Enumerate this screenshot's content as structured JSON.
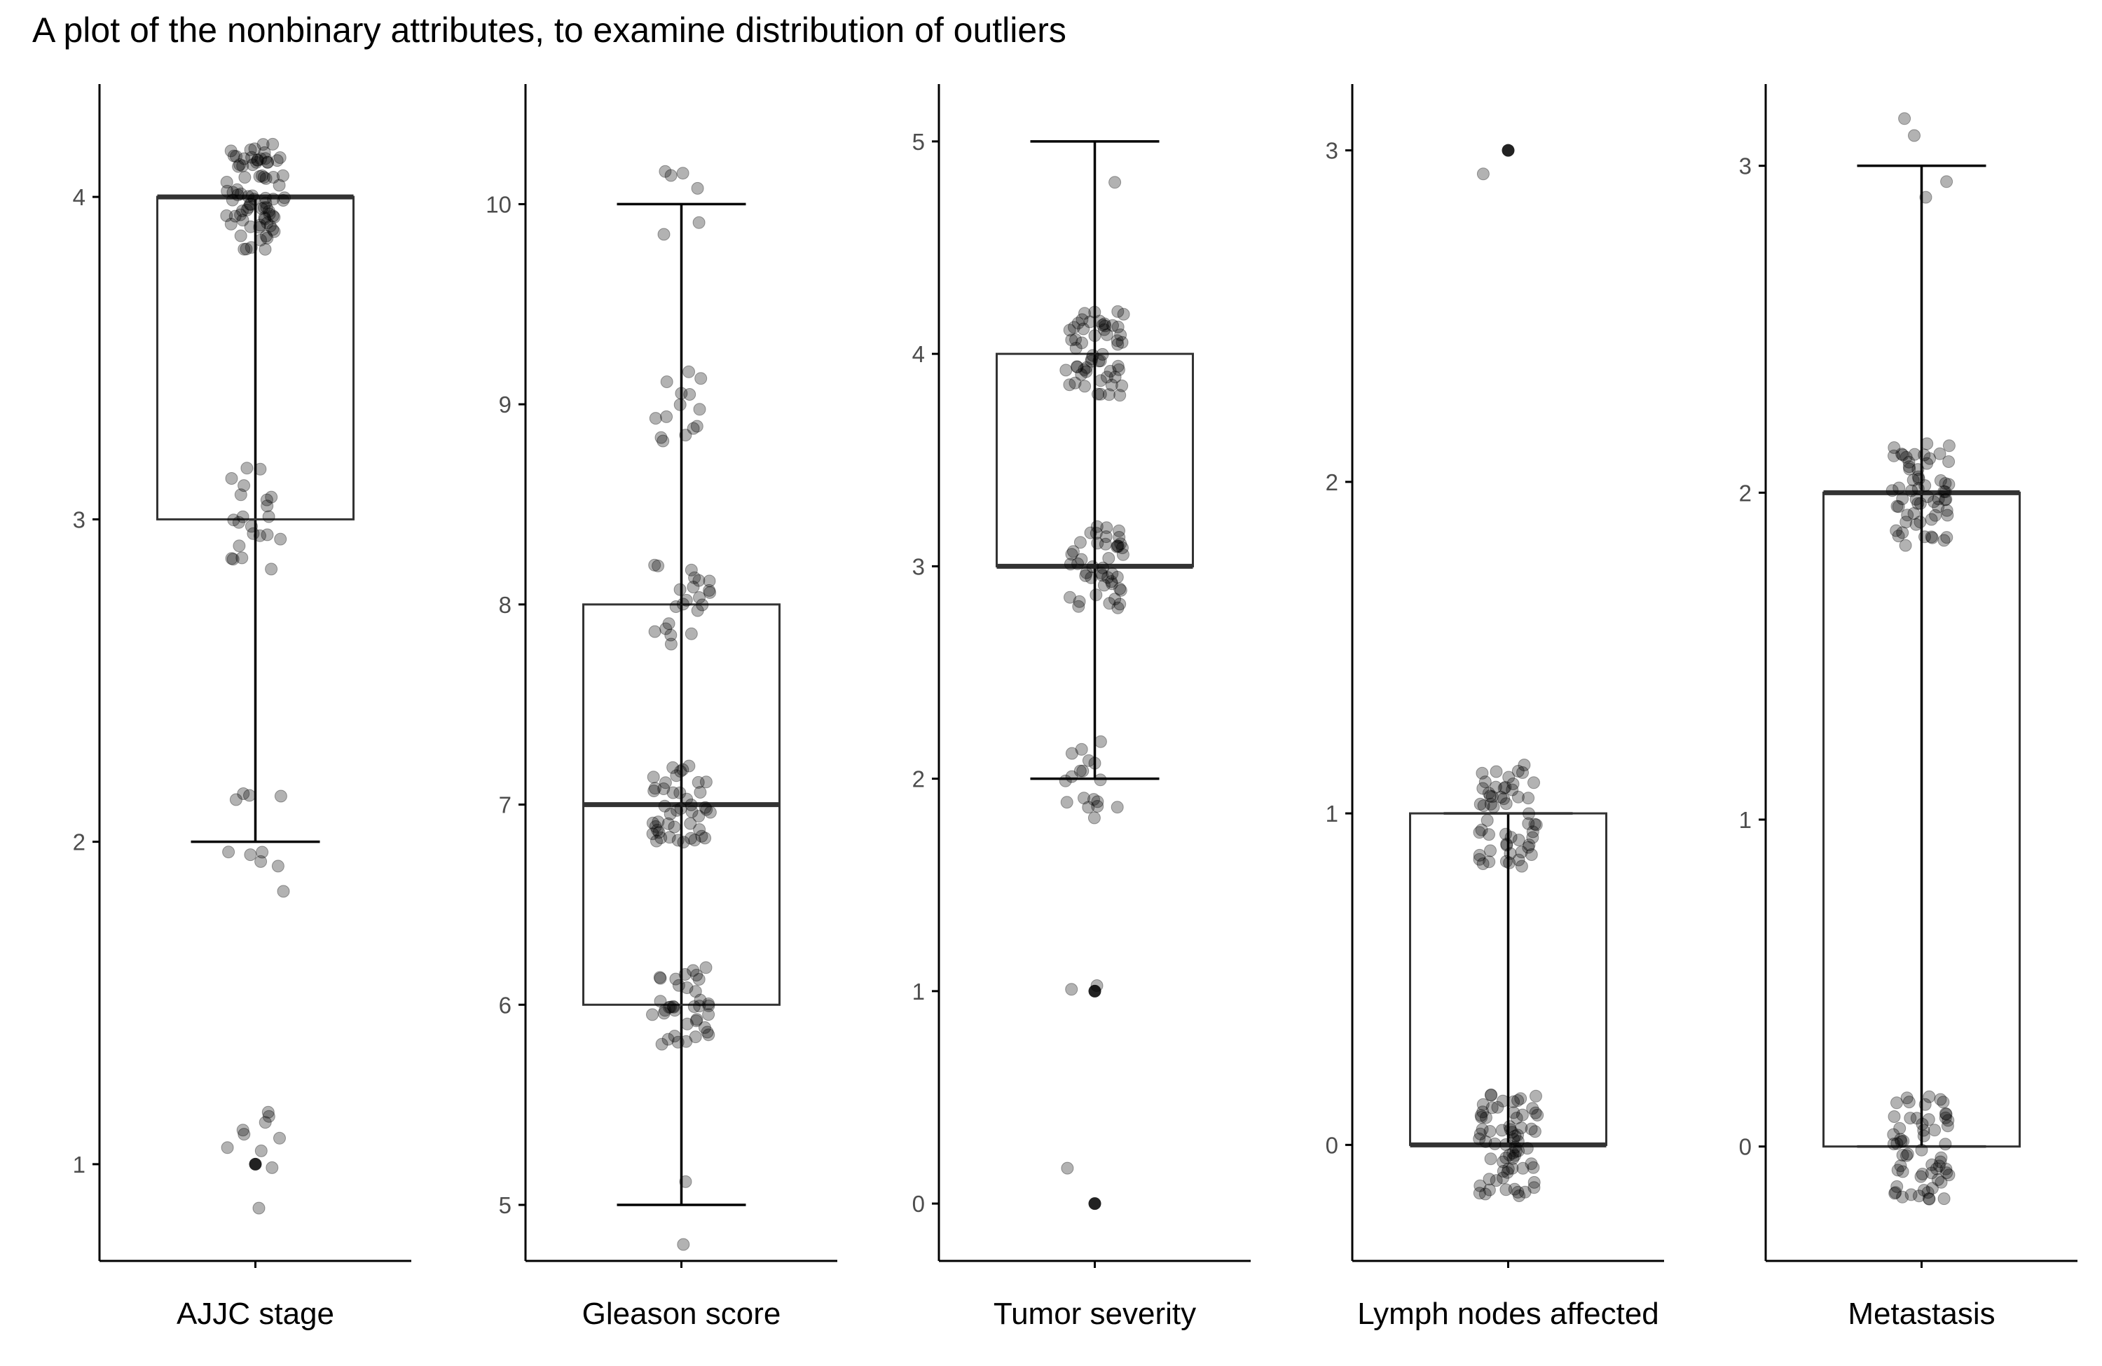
{
  "title": "A plot of the nonbinary attributes, to examine distribution of outliers",
  "colors": {
    "box_line": "#333333",
    "axis": "#000000",
    "point": "#000000",
    "tick_text": "#4d4d4d"
  },
  "chart_data": [
    {
      "type": "boxplot",
      "xlabel": "AJJC stage",
      "ylim": [
        0.7,
        4.35
      ],
      "yticks": [
        1,
        2,
        3,
        4
      ],
      "box": {
        "min": 2,
        "q1": 3,
        "median": 4,
        "q3": 4,
        "max": 4
      },
      "outliers": [
        1
      ],
      "clusters": [
        {
          "value": 4,
          "count": 80
        },
        {
          "value": 3,
          "count": 22
        },
        {
          "value": 2,
          "count": 10
        },
        {
          "value": 1,
          "count": 10
        }
      ]
    },
    {
      "type": "boxplot",
      "xlabel": "Gleason score",
      "ylim": [
        4.72,
        10.6
      ],
      "yticks": [
        5,
        6,
        7,
        8,
        9,
        10
      ],
      "box": {
        "min": 5,
        "q1": 6,
        "median": 7,
        "q3": 8,
        "max": 10
      },
      "outliers": [],
      "clusters": [
        {
          "value": 10,
          "count": 6
        },
        {
          "value": 9,
          "count": 14
        },
        {
          "value": 8,
          "count": 22
        },
        {
          "value": 7,
          "count": 45
        },
        {
          "value": 6,
          "count": 38
        },
        {
          "value": 5,
          "count": 2
        }
      ]
    },
    {
      "type": "boxplot",
      "xlabel": "Tumor severity",
      "ylim": [
        -0.27,
        5.27
      ],
      "yticks": [
        0,
        1,
        2,
        3,
        4,
        5
      ],
      "box": {
        "min": 2,
        "q1": 3,
        "median": 3,
        "q3": 4,
        "max": 5
      },
      "outliers": [
        1,
        0
      ],
      "clusters": [
        {
          "value": 5,
          "count": 1
        },
        {
          "value": 4,
          "count": 55
        },
        {
          "value": 3,
          "count": 45
        },
        {
          "value": 2,
          "count": 18
        },
        {
          "value": 1,
          "count": 2
        },
        {
          "value": 0,
          "count": 1
        }
      ]
    },
    {
      "type": "boxplot",
      "xlabel": "Lymph nodes affected",
      "ylim": [
        -0.35,
        3.2
      ],
      "yticks": [
        0,
        1,
        2,
        3
      ],
      "box": {
        "min": 0,
        "q1": 0,
        "median": 0,
        "q3": 1,
        "max": 1
      },
      "outliers": [
        3
      ],
      "clusters": [
        {
          "value": 3,
          "count": 1
        },
        {
          "value": 1,
          "count": 55
        },
        {
          "value": 0,
          "count": 70
        }
      ]
    },
    {
      "type": "boxplot",
      "xlabel": "Metastasis",
      "ylim": [
        -0.35,
        3.25
      ],
      "yticks": [
        0,
        1,
        2,
        3
      ],
      "box": {
        "min": 0,
        "q1": 0,
        "median": 2,
        "q3": 2,
        "max": 3
      },
      "outliers": [],
      "clusters": [
        {
          "value": 3,
          "count": 4
        },
        {
          "value": 2,
          "count": 60
        },
        {
          "value": 0,
          "count": 60
        }
      ]
    }
  ]
}
